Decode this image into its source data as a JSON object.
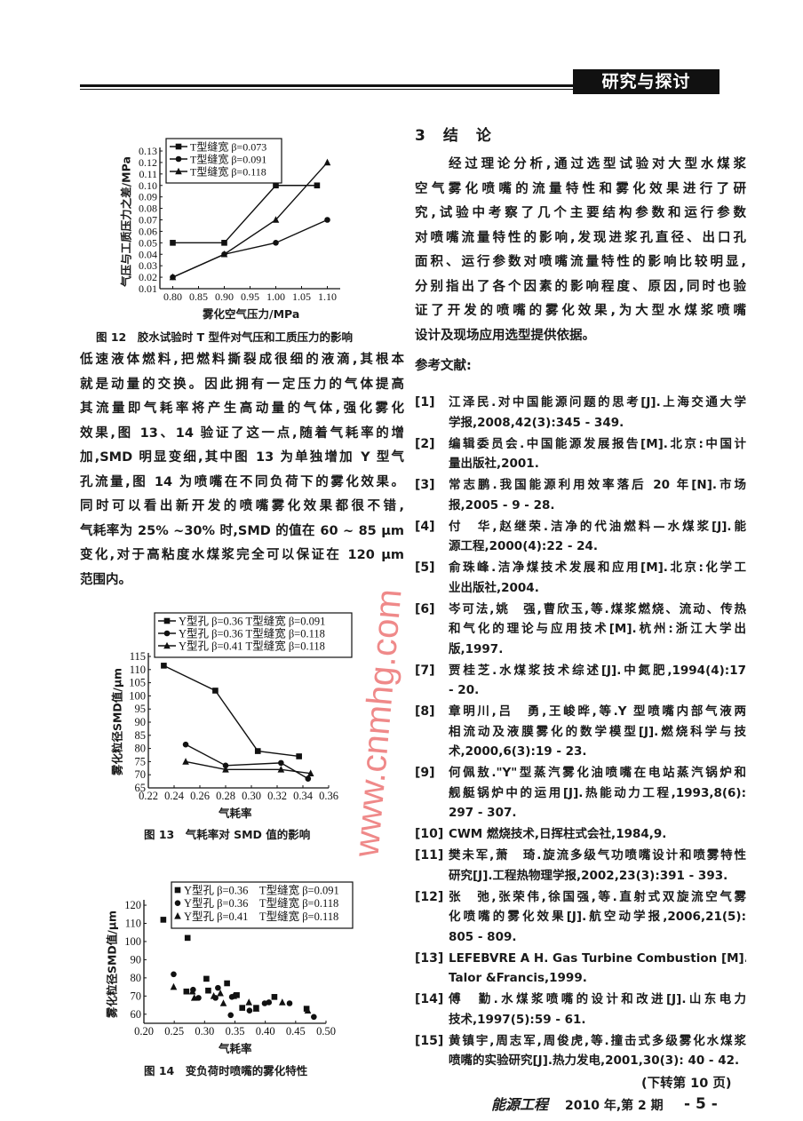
{
  "header": {
    "section": "研究与探讨"
  },
  "left_text": {
    "lines": [
      "低速液体燃料,把燃料撕裂成很细的液滴,其根本",
      "就是动量的交换。因此拥有一定压力的气体提高",
      "其流量即气耗率将产生高动量的气体,强化雾化",
      "效果,图 13、14 验证了这一点,随着气耗率的增",
      "加,SMD 明显变细,其中图 13 为单独增加 Y 型气",
      "孔流量,图 14 为喷嘴在不同负荷下的雾化效果。",
      "同时可以看出新开发的喷嘴雾化效果都很不错,",
      "气耗率为 25% ~30% 时,SMD 的值在 60 ~ 85 μm",
      "变化,对于高粘度水煤浆完全可以保证在 120 μm",
      "范围内。"
    ]
  },
  "conclusion": {
    "number": "3",
    "title_a": "结",
    "title_b": "论",
    "lines": [
      "经过理论分析,通过选型试验对大型水煤浆",
      "空气雾化喷嘴的流量特性和雾化效果进行了研",
      "究,试验中考察了几个主要结构参数和运行参数",
      "对喷嘴流量特性的影响,发现进浆孔直径、出口孔",
      "面积、运行参数对喷嘴流量特性的影响比较明显,",
      "分别指出了各个因素的影响程度、原因,同时也验",
      "证了开发的喷嘴的雾化效果,为大型水煤浆喷嘴",
      "设计及现场应用选型提供依据。"
    ]
  },
  "references": {
    "title": "参考文献:",
    "items": [
      {
        "num": "[1]",
        "lines": [
          "江泽民.对中国能源问题的思考[J].上海交通大学",
          "学报,2008,42(3):345 - 349."
        ]
      },
      {
        "num": "[2]",
        "lines": [
          "编辑委员会.中国能源发展报告[M].北京:中国计",
          "量出版社,2001."
        ]
      },
      {
        "num": "[3]",
        "lines": [
          "常志鹏.我国能源利用效率落后 20 年[N].市场",
          "报,2005 - 9 - 28."
        ]
      },
      {
        "num": "[4]",
        "lines": [
          "付　华,赵继荣.洁净的代油燃料—水煤浆[J].能",
          "源工程,2000(4):22 - 24."
        ]
      },
      {
        "num": "[5]",
        "lines": [
          "俞珠峰.洁净煤技术发展和应用[M].北京:化学工",
          "业出版社,2004."
        ]
      },
      {
        "num": "[6]",
        "lines": [
          "岑可法,姚　强,曹欣玉,等.煤浆燃烧、流动、传热",
          "和气化的理论与应用技术[M].杭州:浙江大学出",
          "版,1997."
        ]
      },
      {
        "num": "[7]",
        "lines": [
          "贾桂芝.水煤浆技术综述[J].中氮肥,1994(4):17",
          "- 20."
        ]
      },
      {
        "num": "[8]",
        "lines": [
          "章明川,吕　勇,王峻晔,等.Y 型喷嘴内部气液两",
          "相流动及液膜雾化的数学模型[J].燃烧科学与技",
          "术,2000,6(3):19 - 23."
        ]
      },
      {
        "num": "[9]",
        "lines": [
          "何佩敖.\"Y\"型蒸汽雾化油喷嘴在电站蒸汽锅炉和",
          "舰艇锅炉中的运用[J].热能动力工程,1993,8(6):",
          "297 - 307."
        ]
      },
      {
        "num": "[10]",
        "lines": [
          "CWM 燃烧技术,日挥柱式会社,1984,9."
        ]
      },
      {
        "num": "[11]",
        "lines": [
          "樊未军,萧　琦.旋流多级气功喷嘴设计和喷雾特性",
          "研究[J].工程热物理学报,2002,23(3):391 - 393."
        ]
      },
      {
        "num": "[12]",
        "lines": [
          "张　弛,张荣伟,徐国强,等.直射式双旋流空气雾",
          "化喷嘴的雾化效果[J].航空动学报,2006,21(5):",
          "805 - 809."
        ]
      },
      {
        "num": "[13]",
        "lines": [
          "LEFEBVRE A H. Gas Turbine Combustion [M].",
          "Talor &Francis,1999."
        ]
      },
      {
        "num": "[14]",
        "lines": [
          "傅　勤.水煤浆喷嘴的设计和改进[J].山东电力",
          "技术,1997(5):59 - 61."
        ]
      },
      {
        "num": "[15]",
        "lines": [
          "黄镇宇,周志军,周俊虎,等.撞击式多级雾化水煤浆",
          "喷嘴的实验研究[J].热力发电,2001,30(3): 40 - 42."
        ]
      }
    ],
    "continued": "(下转第 10 页)"
  },
  "footer": {
    "journal": "能源工程",
    "issue": "2010 年,第 2 期",
    "page": "- 5 -"
  },
  "watermark": "www.cnmhg.com",
  "chart_data": [
    {
      "type": "line",
      "caption": "图 12　胶水试验时 T 型件对气压和工质压力的影响",
      "xlabel": "雾化空气压力/MPa",
      "ylabel": "气压与工质压力之差/MPa",
      "xlim": [
        0.775,
        1.125
      ],
      "ylim": [
        0.01,
        0.13
      ],
      "xticks": [
        0.8,
        0.85,
        0.9,
        0.95,
        1.0,
        1.05,
        1.1
      ],
      "xtick_labels": [
        "0.80",
        "0.85",
        "0.90",
        "0.95",
        "1.00",
        "1.05",
        "1.10"
      ],
      "yticks": [
        0.01,
        0.02,
        0.03,
        0.04,
        0.05,
        0.06,
        0.07,
        0.08,
        0.09,
        0.1,
        0.11,
        0.12,
        0.13
      ],
      "ytick_labels": [
        "0.01",
        "0.02",
        "0.03",
        "0.04",
        "0.05",
        "0.06",
        "0.07",
        "0.08",
        "0.09",
        "0.10",
        "0.11",
        "0.12",
        "0.13"
      ],
      "legend_position": "top-left",
      "series": [
        {
          "name": "T型缝宽 β=0.073",
          "marker": "square",
          "x": [
            0.8,
            0.9,
            1.0,
            1.08
          ],
          "y": [
            0.05,
            0.05,
            0.1,
            0.1
          ]
        },
        {
          "name": "T型缝宽 β=0.091",
          "marker": "circle",
          "x": [
            0.8,
            0.9,
            1.0,
            1.1
          ],
          "y": [
            0.02,
            0.04,
            0.05,
            0.07
          ]
        },
        {
          "name": "T型缝宽 β=0.118",
          "marker": "triangle",
          "x": [
            0.8,
            0.9,
            1.0,
            1.1
          ],
          "y": [
            0.02,
            0.04,
            0.07,
            0.12
          ]
        }
      ]
    },
    {
      "type": "line",
      "caption": "图 13　气耗率对 SMD 值的影响",
      "xlabel": "气耗率",
      "ylabel": "雾化粒径SMD值/μm",
      "xlim": [
        0.22,
        0.36
      ],
      "ylim": [
        65,
        115
      ],
      "xticks": [
        0.22,
        0.24,
        0.26,
        0.28,
        0.3,
        0.32,
        0.34,
        0.36
      ],
      "xtick_labels": [
        "0.22",
        "0.24",
        "0.26",
        "0.28",
        "0.30",
        "0.32",
        "0.34",
        "0.36"
      ],
      "yticks": [
        65,
        70,
        75,
        80,
        85,
        90,
        95,
        100,
        105,
        110,
        115
      ],
      "ytick_labels": [
        "65",
        "70",
        "75",
        "80",
        "85",
        "90",
        "95",
        "100",
        "105",
        "110",
        "115"
      ],
      "legend_position": "top",
      "series": [
        {
          "name": "Y型孔 β=0.36 T型缝宽 β=0.091",
          "marker": "square",
          "x": [
            0.232,
            0.272,
            0.305,
            0.337
          ],
          "y": [
            111.5,
            102,
            79,
            77
          ]
        },
        {
          "name": "Y型孔 β=0.36 T型缝宽 β=0.118",
          "marker": "circle",
          "x": [
            0.249,
            0.28,
            0.323,
            0.344
          ],
          "y": [
            81.5,
            73.5,
            74.5,
            68.5
          ]
        },
        {
          "name": "Y型孔 β=0.41 T型缝宽 β=0.118",
          "marker": "triangle",
          "x": [
            0.249,
            0.28,
            0.323,
            0.346
          ],
          "y": [
            75,
            72,
            72,
            70.5
          ]
        }
      ]
    },
    {
      "type": "scatter",
      "caption": "图 14　变负荷时喷嘴的雾化特性",
      "xlabel": "气耗率",
      "ylabel": "雾化粒径SMD值/μm",
      "xlim": [
        0.2,
        0.5
      ],
      "ylim": [
        55,
        121
      ],
      "xticks": [
        0.2,
        0.25,
        0.3,
        0.35,
        0.4,
        0.45,
        0.5
      ],
      "xtick_labels": [
        "0.20",
        "0.25",
        "0.30",
        "0.35",
        "0.40",
        "0.45",
        "0.50"
      ],
      "yticks": [
        60,
        70,
        80,
        90,
        100,
        110,
        120
      ],
      "ytick_labels": [
        "60",
        "70",
        "80",
        "90",
        "100",
        "110",
        "120"
      ],
      "legend_position": "top-right",
      "series": [
        {
          "name": "Y型孔 β=0.36　T型缝宽 β=0.091",
          "marker": "square",
          "x": [
            0.232,
            0.272,
            0.27,
            0.303,
            0.306,
            0.337,
            0.353,
            0.362,
            0.385,
            0.415,
            0.468
          ],
          "y": [
            112,
            102,
            72.5,
            79.5,
            73,
            77,
            70.5,
            63.5,
            63.5,
            69.5,
            63
          ]
        },
        {
          "name": "Y型孔 β=0.36　T型缝宽 β=0.118",
          "marker": "circle",
          "x": [
            0.249,
            0.281,
            0.29,
            0.322,
            0.318,
            0.343,
            0.345,
            0.374,
            0.399,
            0.406,
            0.44,
            0.48
          ],
          "y": [
            82,
            73.5,
            69,
            74.5,
            69,
            59.5,
            69.5,
            62,
            66,
            66.5,
            66,
            58.5
          ]
        },
        {
          "name": "Y型孔 β=0.41　T型缝宽 β=0.118",
          "marker": "triangle",
          "x": [
            0.249,
            0.28,
            0.283,
            0.315,
            0.326,
            0.331,
            0.348,
            0.373,
            0.385,
            0.428,
            0.47
          ],
          "y": [
            75,
            72.5,
            69,
            70,
            71.5,
            66,
            70,
            66.5,
            63,
            66.5,
            62
          ]
        }
      ]
    }
  ]
}
